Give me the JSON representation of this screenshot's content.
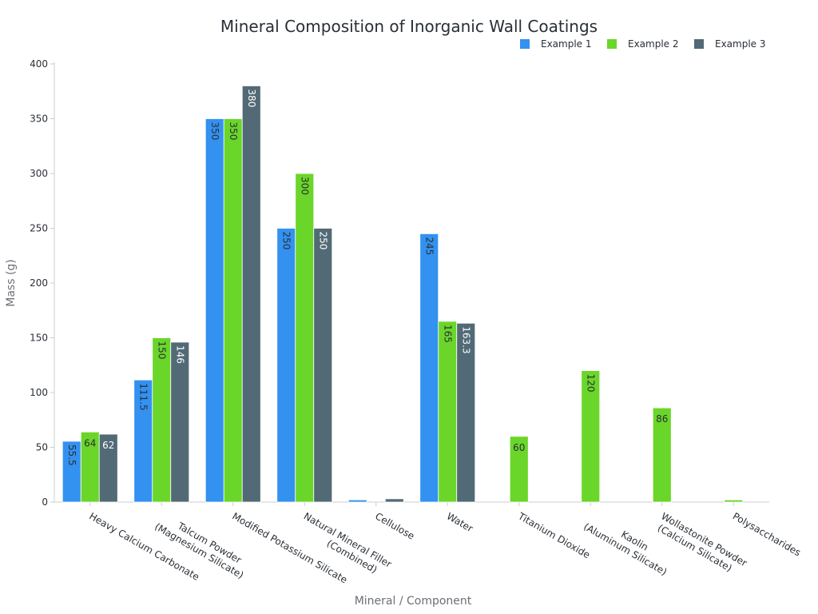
{
  "chart_data": {
    "type": "bar",
    "title": "Mineral Composition of Inorganic Wall Coatings",
    "xlabel": "Mineral / Component",
    "ylabel": "Mass (g)",
    "ylim": [
      0,
      400
    ],
    "yticks": [
      0,
      50,
      100,
      150,
      200,
      250,
      300,
      350,
      400
    ],
    "categories": [
      "Heavy Calcium Carbonate",
      "Talcum Powder\n(Magnesium Silicate)",
      "Modified Potassium Silicate",
      "Natural Mineral Filler\n(Combined)",
      "Cellulose",
      "Water",
      "Titanium Dioxide",
      "Kaolin\n(Aluminum Silicate)",
      "Wollastonite Powder\n(Calcium Silicate)",
      "Polysaccharides"
    ],
    "series": [
      {
        "name": "Example 1",
        "color": "#3391f0",
        "values": [
          55.5,
          111.5,
          350,
          250,
          2,
          245,
          null,
          null,
          null,
          null
        ]
      },
      {
        "name": "Example 2",
        "color": "#6ad62a",
        "values": [
          64,
          150,
          350,
          300,
          null,
          165,
          60,
          120,
          86,
          2
        ]
      },
      {
        "name": "Example 3",
        "color": "#526a76",
        "values": [
          62,
          146,
          380,
          250,
          3,
          163.3,
          null,
          null,
          null,
          null
        ]
      }
    ],
    "legend_position": "top-right",
    "grid": false
  }
}
